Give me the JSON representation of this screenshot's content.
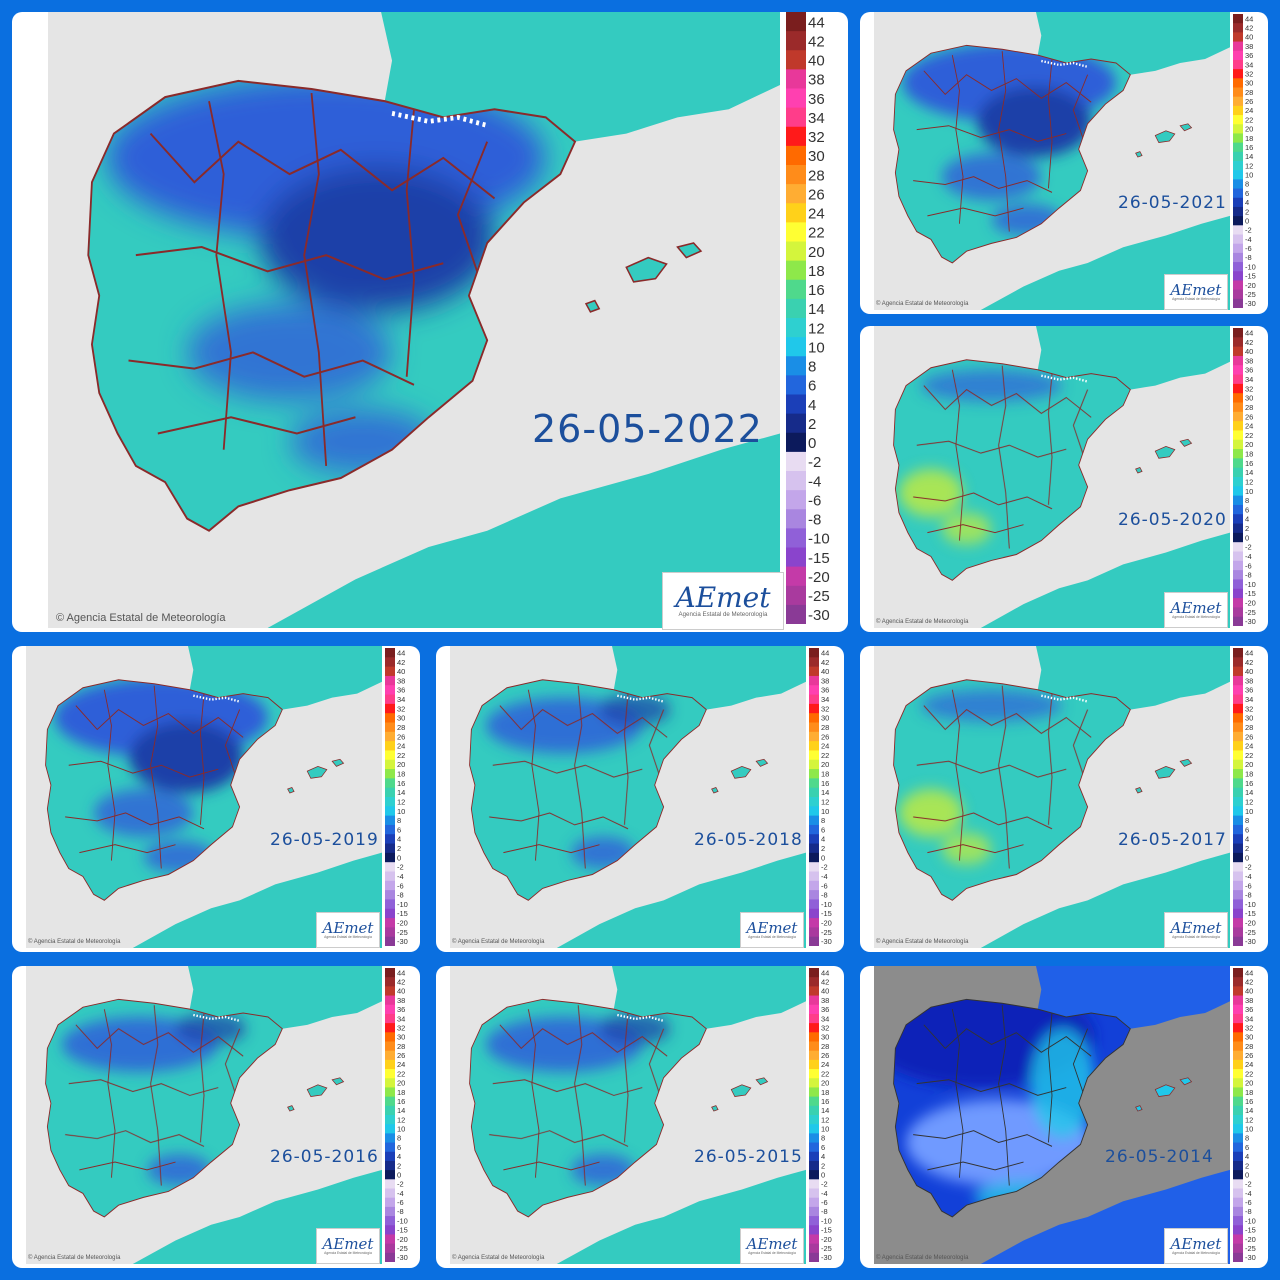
{
  "credit": "Agencia Estatal de Meteorología",
  "logo": {
    "text": "AEmet",
    "subtitle": "Agencia Estatal de Meteorología"
  },
  "legend": {
    "values": [
      "44",
      "42",
      "40",
      "38",
      "36",
      "34",
      "32",
      "30",
      "28",
      "26",
      "24",
      "22",
      "20",
      "18",
      "16",
      "14",
      "12",
      "10",
      "8",
      "6",
      "4",
      "2",
      "0",
      "-2",
      "-4",
      "-6",
      "-8",
      "-10",
      "-15",
      "-20",
      "-25",
      "-30"
    ],
    "colors": [
      "#7a1e1e",
      "#9b2a2a",
      "#c0392b",
      "#e8389a",
      "#ff40b0",
      "#ff3d8a",
      "#ff1a1a",
      "#ff6a00",
      "#ff8c1a",
      "#ffad33",
      "#ffd11a",
      "#ffff33",
      "#d4f53c",
      "#8ee84a",
      "#4fd98c",
      "#3ad1b0",
      "#2ed0d0",
      "#20c8ea",
      "#1a8ee6",
      "#2266dd",
      "#1b3fb8",
      "#162b8a",
      "#0c1a5c",
      "#e8dcf2",
      "#d6c2ee",
      "#c3a6ea",
      "#a986e0",
      "#9060d8",
      "#8a44cc",
      "#c43aa8",
      "#a93a9e",
      "#8a3a96"
    ]
  },
  "maps": [
    {
      "date": "26-05-2022",
      "style": "cold"
    },
    {
      "date": "26-05-2021",
      "style": "cold"
    },
    {
      "date": "26-05-2020",
      "style": "warm"
    },
    {
      "date": "26-05-2019",
      "style": "cold"
    },
    {
      "date": "26-05-2018",
      "style": "mild"
    },
    {
      "date": "26-05-2017",
      "style": "warm"
    },
    {
      "date": "26-05-2016",
      "style": "mild"
    },
    {
      "date": "26-05-2015",
      "style": "mild"
    },
    {
      "date": "26-05-2014",
      "style": "dark"
    }
  ],
  "colors": {
    "sea": "#e5e5e5",
    "land": "#34cbc0",
    "cold": "#2f5fd8",
    "coldDeep": "#1e3fa8",
    "warm": "#b5e84a",
    "border": "#8a2a2a",
    "dark_sea": "#8c8c8c",
    "dark_land": "#1240d8"
  }
}
